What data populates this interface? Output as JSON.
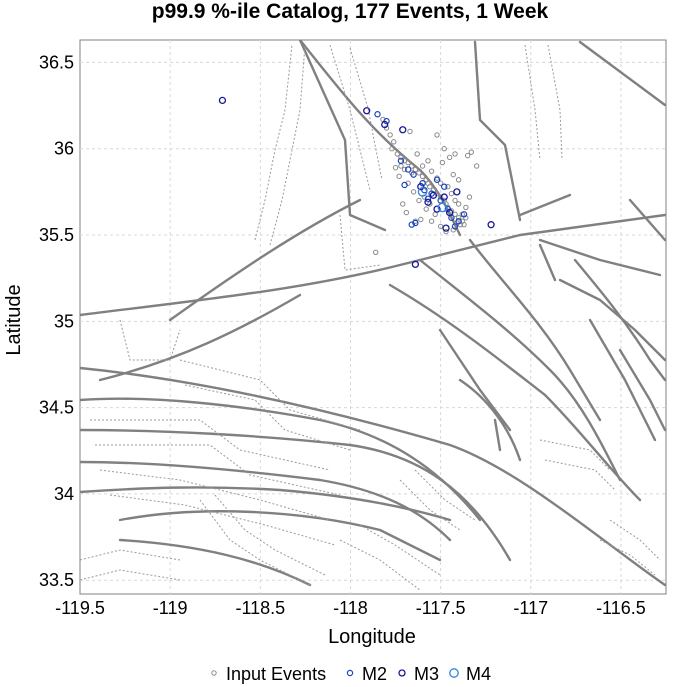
{
  "chart_data": {
    "type": "scatter",
    "title": "p99.9 %-ile Catalog, 177 Events, 1 Week",
    "xlabel": "Longitude",
    "ylabel": "Latitude",
    "xlim": [
      -119.5,
      -116.25
    ],
    "ylim": [
      33.42,
      36.63
    ],
    "x_ticks": [
      -119.5,
      -119,
      -118.5,
      -118,
      -117.5,
      -117,
      -116.5
    ],
    "x_tick_labels": [
      "-119.5",
      "-119",
      "-118.5",
      "-118",
      "-117.5",
      "-117",
      "-116.5"
    ],
    "y_ticks": [
      33.5,
      34,
      34.5,
      35,
      35.5,
      36,
      36.5
    ],
    "y_tick_labels": [
      "33.5",
      "34",
      "34.5",
      "35",
      "35.5",
      "36",
      "36.5"
    ],
    "grid": true,
    "legend_position": "bottom",
    "colors": {
      "input": "#8a8a8a",
      "m2": "#1a44c0",
      "m3": "#18189a",
      "m4": "#2e86de",
      "fault": "#808080"
    },
    "series": [
      {
        "name": "Input Events",
        "marker": "open-circle-small",
        "points": [
          [
            -117.82,
            36.17
          ],
          [
            -117.8,
            36.12
          ],
          [
            -117.78,
            36.08
          ],
          [
            -117.76,
            36.04
          ],
          [
            -117.77,
            36.0
          ],
          [
            -117.74,
            35.97
          ],
          [
            -117.72,
            35.95
          ],
          [
            -117.7,
            35.93
          ],
          [
            -117.68,
            35.92
          ],
          [
            -117.66,
            35.9
          ],
          [
            -117.64,
            35.88
          ],
          [
            -117.62,
            35.86
          ],
          [
            -117.6,
            35.84
          ],
          [
            -117.58,
            35.82
          ],
          [
            -117.57,
            35.8
          ],
          [
            -117.56,
            35.78
          ],
          [
            -117.54,
            35.76
          ],
          [
            -117.52,
            35.74
          ],
          [
            -117.5,
            35.72
          ],
          [
            -117.48,
            35.7
          ],
          [
            -117.47,
            35.68
          ],
          [
            -117.46,
            35.66
          ],
          [
            -117.44,
            35.64
          ],
          [
            -117.42,
            35.62
          ],
          [
            -117.4,
            35.6
          ],
          [
            -117.38,
            35.58
          ],
          [
            -117.37,
            35.56
          ],
          [
            -117.72,
            35.9
          ],
          [
            -117.7,
            35.88
          ],
          [
            -117.66,
            35.86
          ],
          [
            -117.6,
            35.9
          ],
          [
            -117.55,
            35.87
          ],
          [
            -117.52,
            35.83
          ],
          [
            -117.5,
            35.8
          ],
          [
            -117.46,
            35.78
          ],
          [
            -117.44,
            35.74
          ],
          [
            -117.42,
            35.7
          ],
          [
            -117.4,
            35.68
          ],
          [
            -117.36,
            35.66
          ],
          [
            -117.34,
            35.72
          ],
          [
            -117.45,
            35.95
          ],
          [
            -117.42,
            35.97
          ],
          [
            -117.35,
            35.96
          ],
          [
            -117.33,
            35.98
          ],
          [
            -117.48,
            36.0
          ],
          [
            -117.53,
            35.62
          ],
          [
            -117.58,
            35.65
          ],
          [
            -117.62,
            35.7
          ],
          [
            -117.65,
            35.75
          ],
          [
            -117.68,
            35.8
          ],
          [
            -117.73,
            35.84
          ],
          [
            -117.75,
            35.89
          ],
          [
            -117.61,
            35.59
          ],
          [
            -117.64,
            35.58
          ],
          [
            -117.55,
            35.58
          ],
          [
            -117.5,
            35.55
          ],
          [
            -117.47,
            35.52
          ],
          [
            -117.43,
            35.53
          ],
          [
            -117.39,
            35.56
          ],
          [
            -117.3,
            35.9
          ],
          [
            -117.52,
            36.08
          ],
          [
            -117.49,
            35.92
          ],
          [
            -117.57,
            35.93
          ],
          [
            -117.4,
            35.82
          ],
          [
            -117.43,
            35.85
          ],
          [
            -117.86,
            35.4
          ],
          [
            -117.67,
            36.1
          ],
          [
            -117.63,
            35.97
          ],
          [
            -117.59,
            35.72
          ],
          [
            -117.56,
            35.68
          ],
          [
            -117.69,
            35.63
          ],
          [
            -117.71,
            35.68
          ],
          [
            -117.38,
            35.62
          ],
          [
            -117.36,
            35.6
          ],
          [
            -117.41,
            35.57
          ]
        ]
      },
      {
        "name": "M2",
        "marker": "open-circle-medium",
        "points": [
          [
            -117.85,
            36.2
          ],
          [
            -117.8,
            36.16
          ],
          [
            -117.72,
            35.93
          ],
          [
            -117.68,
            35.88
          ],
          [
            -117.65,
            35.85
          ],
          [
            -117.6,
            35.8
          ],
          [
            -117.55,
            35.74
          ],
          [
            -117.5,
            35.7
          ],
          [
            -117.46,
            35.65
          ],
          [
            -117.44,
            35.6
          ],
          [
            -117.4,
            35.58
          ],
          [
            -117.64,
            35.57
          ],
          [
            -117.66,
            35.56
          ],
          [
            -117.7,
            35.79
          ],
          [
            -117.52,
            35.82
          ],
          [
            -117.48,
            35.78
          ],
          [
            -117.37,
            35.62
          ],
          [
            -117.42,
            35.55
          ],
          [
            -117.57,
            35.71
          ],
          [
            -117.59,
            35.76
          ]
        ]
      },
      {
        "name": "M3",
        "marker": "open-circle-large",
        "points": [
          [
            -118.71,
            36.28
          ],
          [
            -117.91,
            36.22
          ],
          [
            -117.81,
            36.14
          ],
          [
            -117.71,
            36.11
          ],
          [
            -117.57,
            35.69
          ],
          [
            -117.47,
            35.54
          ],
          [
            -117.22,
            35.56
          ],
          [
            -117.64,
            35.33
          ],
          [
            -117.54,
            35.73
          ],
          [
            -117.48,
            35.72
          ],
          [
            -117.52,
            35.65
          ],
          [
            -117.61,
            35.78
          ],
          [
            -117.45,
            35.63
          ],
          [
            -117.41,
            35.75
          ]
        ]
      },
      {
        "name": "M4",
        "marker": "open-circle-xlarge",
        "points": [
          [
            -117.49,
            35.66
          ],
          [
            -117.6,
            35.75
          ]
        ]
      }
    ]
  }
}
